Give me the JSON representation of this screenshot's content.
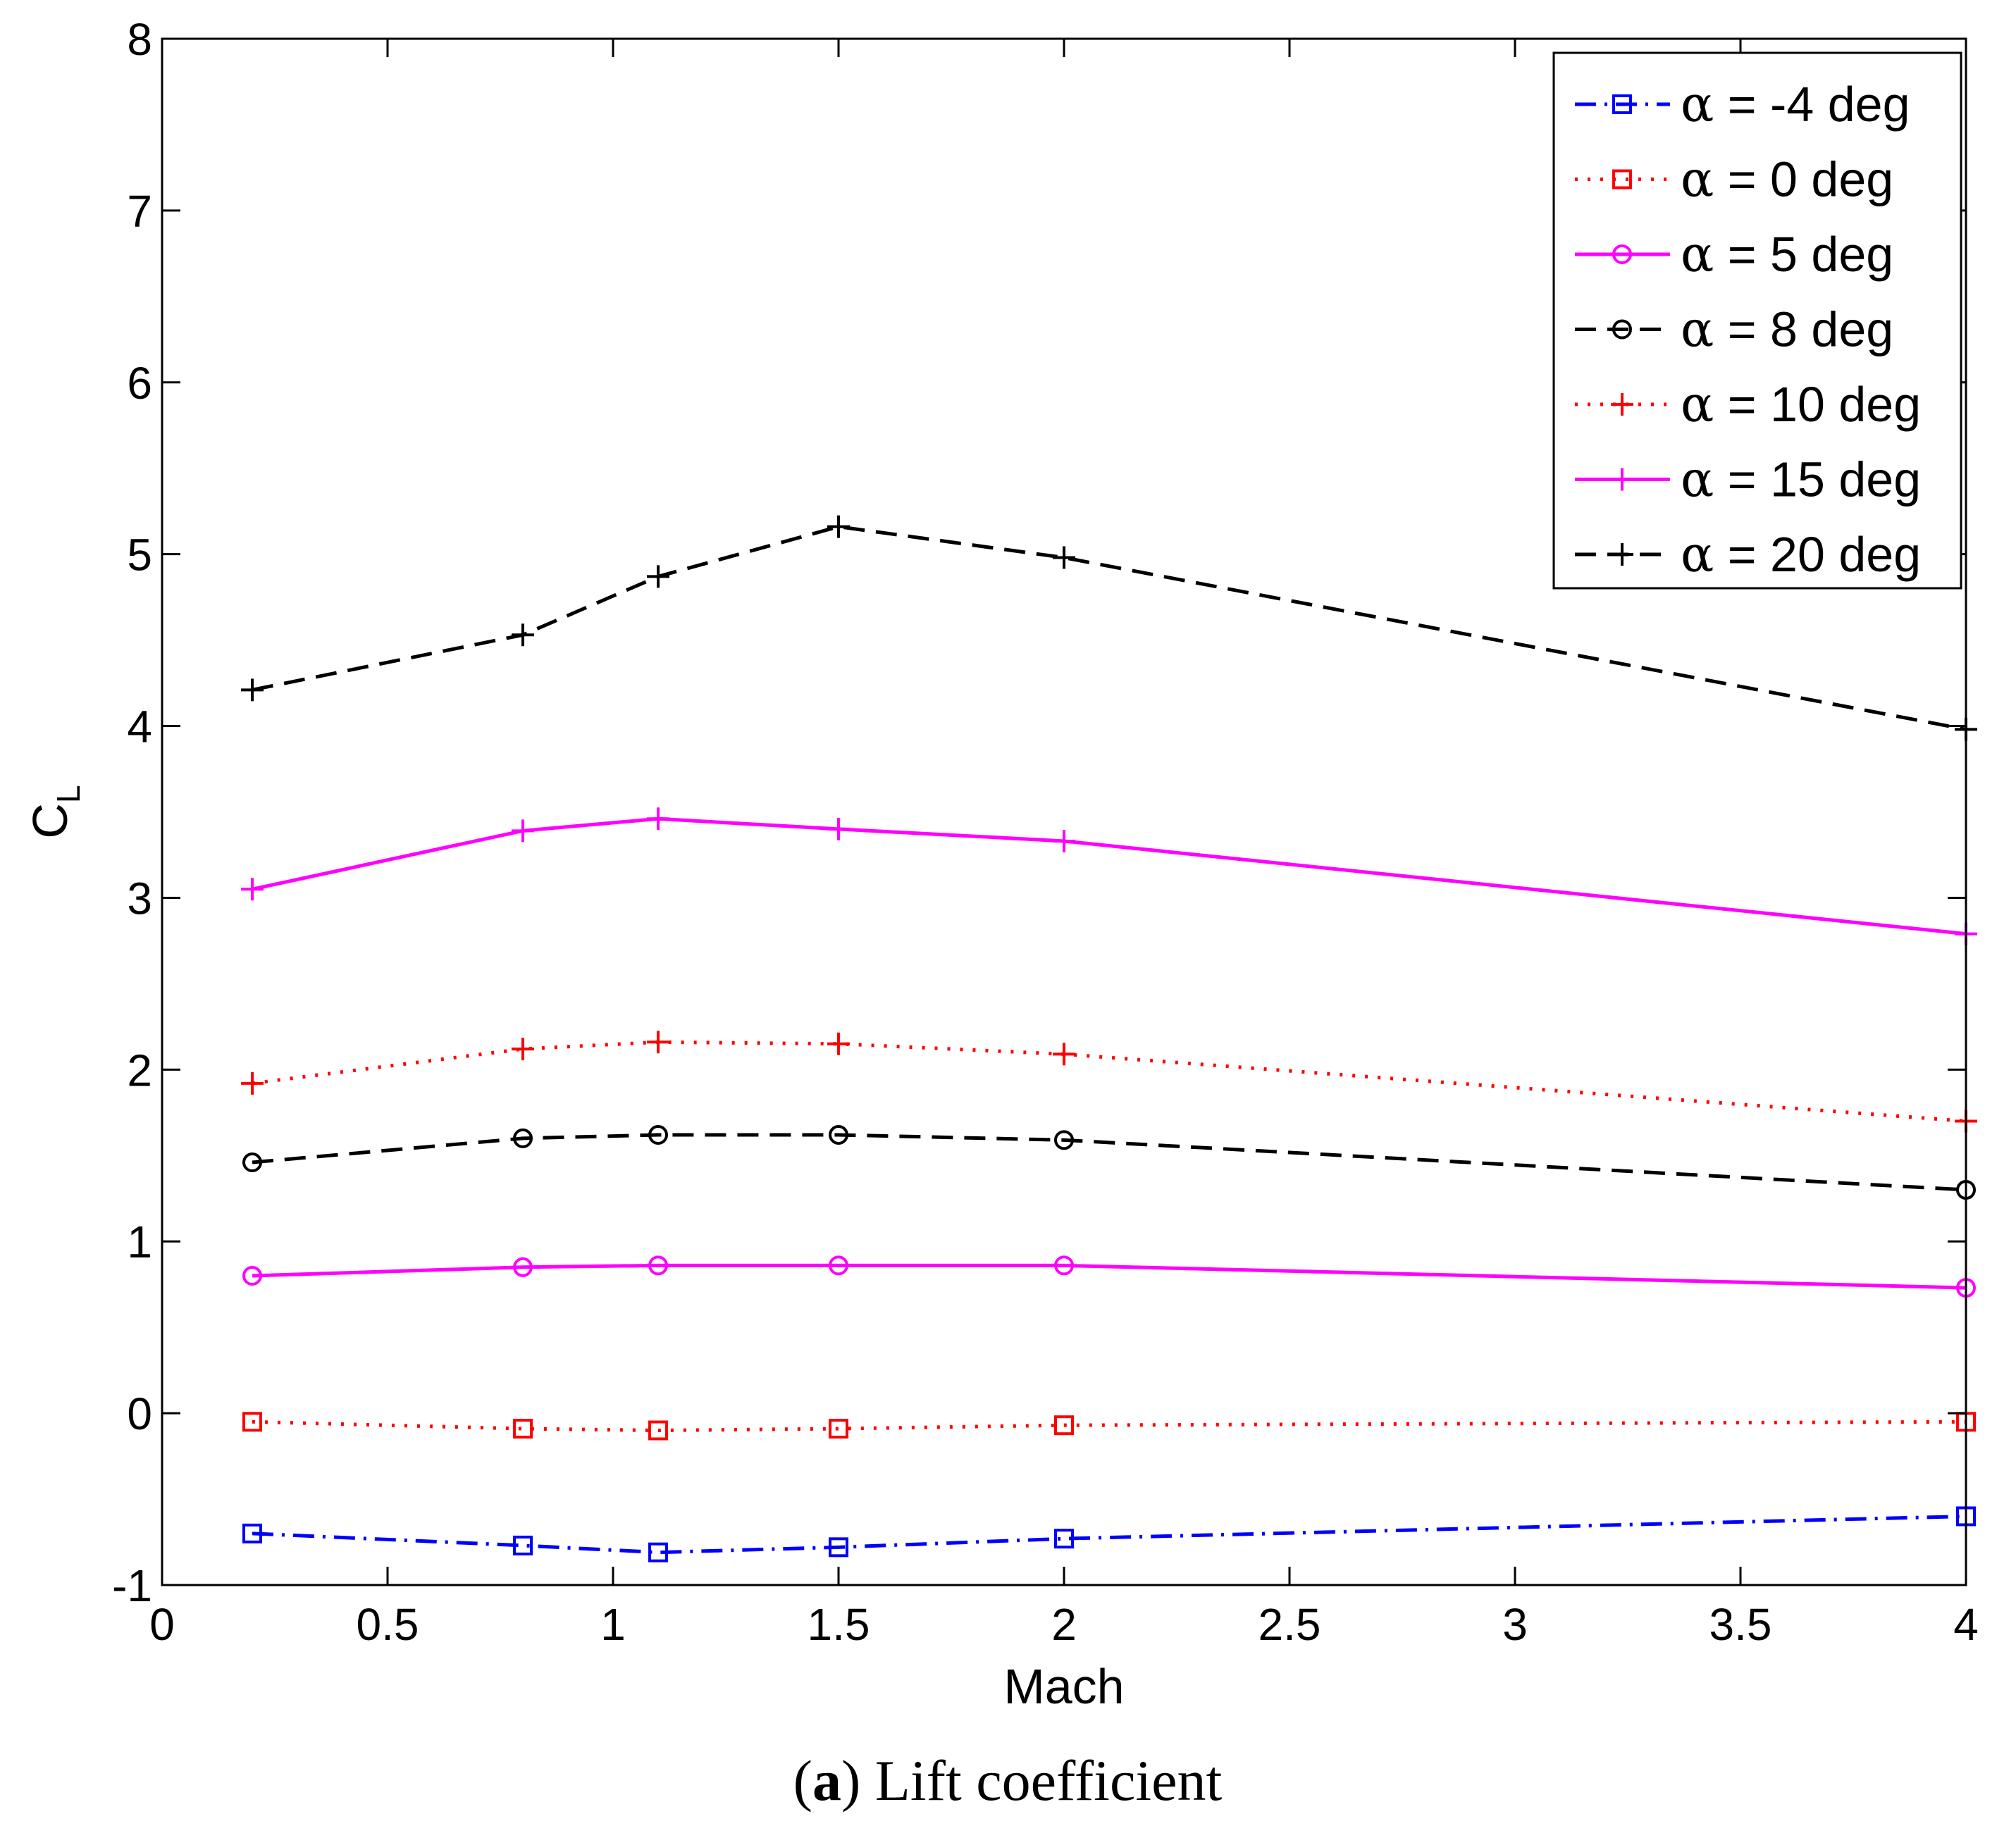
{
  "chart_data": {
    "type": "line",
    "title": "",
    "xlabel": "Mach",
    "ylabel": "C",
    "ylabel_subscript": "L",
    "xlim": [
      0,
      4
    ],
    "ylim": [
      -1,
      8
    ],
    "xticks": [
      0,
      0.5,
      1,
      1.5,
      2,
      2.5,
      3,
      3.5,
      4
    ],
    "xtick_labels": [
      "0",
      "0.5",
      "1",
      "1.5",
      "2",
      "2.5",
      "3",
      "3.5",
      "4"
    ],
    "yticks": [
      -1,
      0,
      1,
      2,
      3,
      4,
      5,
      6,
      7,
      8
    ],
    "ytick_labels": [
      "-1",
      "0",
      "1",
      "2",
      "3",
      "4",
      "5",
      "6",
      "7",
      "8"
    ],
    "grid": false,
    "legend_position": "top-right",
    "x": [
      0.2,
      0.8,
      1.1,
      1.5,
      2,
      4
    ],
    "series": [
      {
        "name": "α = -4 deg",
        "symbol": "α",
        "label_text": " = -4 deg",
        "color": "#0000ff",
        "dash": "dashdot",
        "marker": "square",
        "values": [
          -0.7,
          -0.77,
          -0.81,
          -0.78,
          -0.73,
          -0.6
        ]
      },
      {
        "name": "α = 0 deg",
        "symbol": "α",
        "label_text": " = 0 deg",
        "color": "#ff0000",
        "dash": "dotted",
        "marker": "square",
        "values": [
          -0.05,
          -0.09,
          -0.1,
          -0.09,
          -0.07,
          -0.05
        ]
      },
      {
        "name": "α = 5 deg",
        "symbol": "α",
        "label_text": " = 5 deg",
        "color": "#ff00ff",
        "dash": "solid",
        "marker": "circle",
        "values": [
          0.8,
          0.85,
          0.86,
          0.86,
          0.86,
          0.73
        ]
      },
      {
        "name": "α = 8 deg",
        "symbol": "α",
        "label_text": " = 8 deg",
        "color": "#000000",
        "dash": "dashed",
        "marker": "circle",
        "values": [
          1.46,
          1.6,
          1.62,
          1.62,
          1.59,
          1.3
        ]
      },
      {
        "name": "α = 10 deg",
        "symbol": "α",
        "label_text": " = 10 deg",
        "color": "#ff0000",
        "dash": "dotted",
        "marker": "plus",
        "values": [
          1.92,
          2.12,
          2.16,
          2.15,
          2.09,
          1.7
        ]
      },
      {
        "name": "α = 15 deg",
        "symbol": "α",
        "label_text": " = 15 deg",
        "color": "#ff00ff",
        "dash": "solid",
        "marker": "plus",
        "values": [
          3.05,
          3.39,
          3.46,
          3.4,
          3.33,
          2.79
        ]
      },
      {
        "name": "α = 20 deg",
        "symbol": "α",
        "label_text": " = 20 deg",
        "color": "#000000",
        "dash": "dashed",
        "marker": "plus",
        "values": [
          4.21,
          4.53,
          4.87,
          5.16,
          4.98,
          3.98
        ]
      }
    ]
  },
  "caption": {
    "label": "a",
    "open_paren": "(",
    "close_paren": ")",
    "text": " Lift coefficient"
  }
}
